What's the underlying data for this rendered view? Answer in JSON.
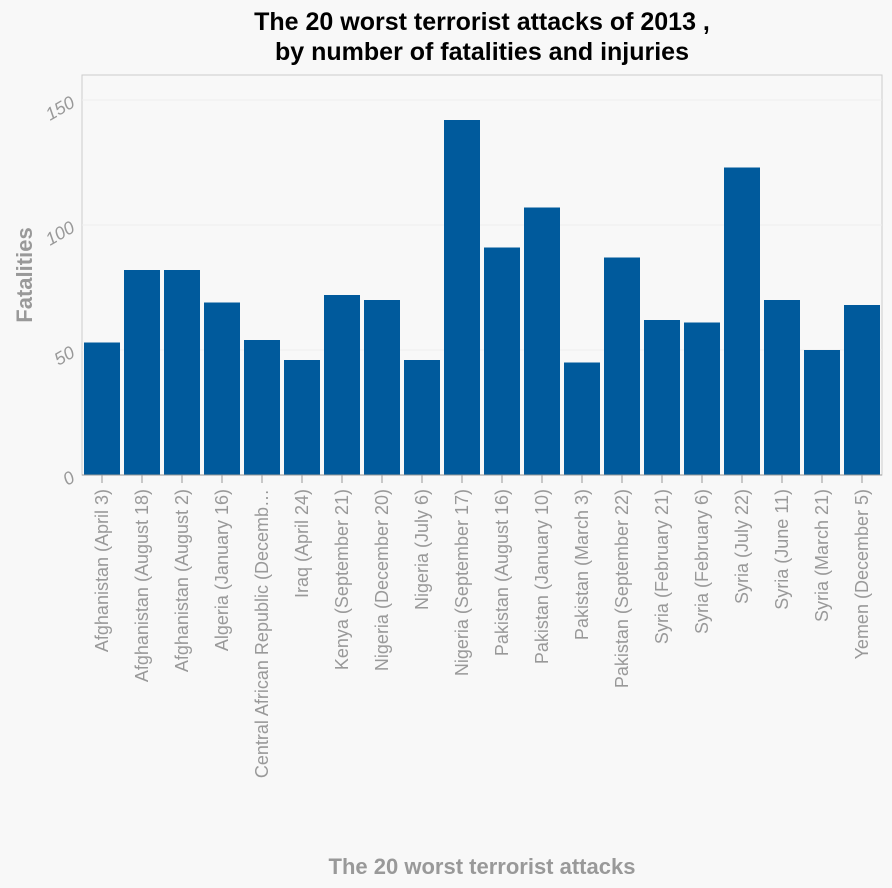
{
  "chart_data": {
    "type": "bar",
    "title_lines": [
      "The 20 worst terrorist attacks of 2013 ,",
      "by number of fatalities and injuries"
    ],
    "xlabel": "The 20 worst terrorist attacks",
    "ylabel": "Fatalities",
    "ylim": [
      0,
      150
    ],
    "yticks": [
      0,
      50,
      100,
      150
    ],
    "grid": true,
    "bar_color": "#005a9c",
    "categories": [
      "Afghanistan (April 3)",
      "Afghanistan (August 18)",
      "Afghanistan (August 2)",
      "Algeria (January 16)",
      "Central African Republic (Decemb…",
      "Iraq (April 24)",
      "Kenya (September 21)",
      "Nigeria (December 20)",
      "Nigeria (July 6)",
      "Nigeria (September 17)",
      "Pakistan (August 16)",
      "Pakistan (January 10)",
      "Pakistan (March 3)",
      "Pakistan (September 22)",
      "Syria (February 21)",
      "Syria (February 6)",
      "Syria (July 22)",
      "Syria (June 11)",
      "Syria (March 21)",
      "Yemen (December 5)"
    ],
    "values": [
      53,
      82,
      82,
      69,
      54,
      46,
      72,
      70,
      46,
      142,
      91,
      107,
      45,
      87,
      62,
      61,
      123,
      70,
      50,
      68
    ]
  }
}
